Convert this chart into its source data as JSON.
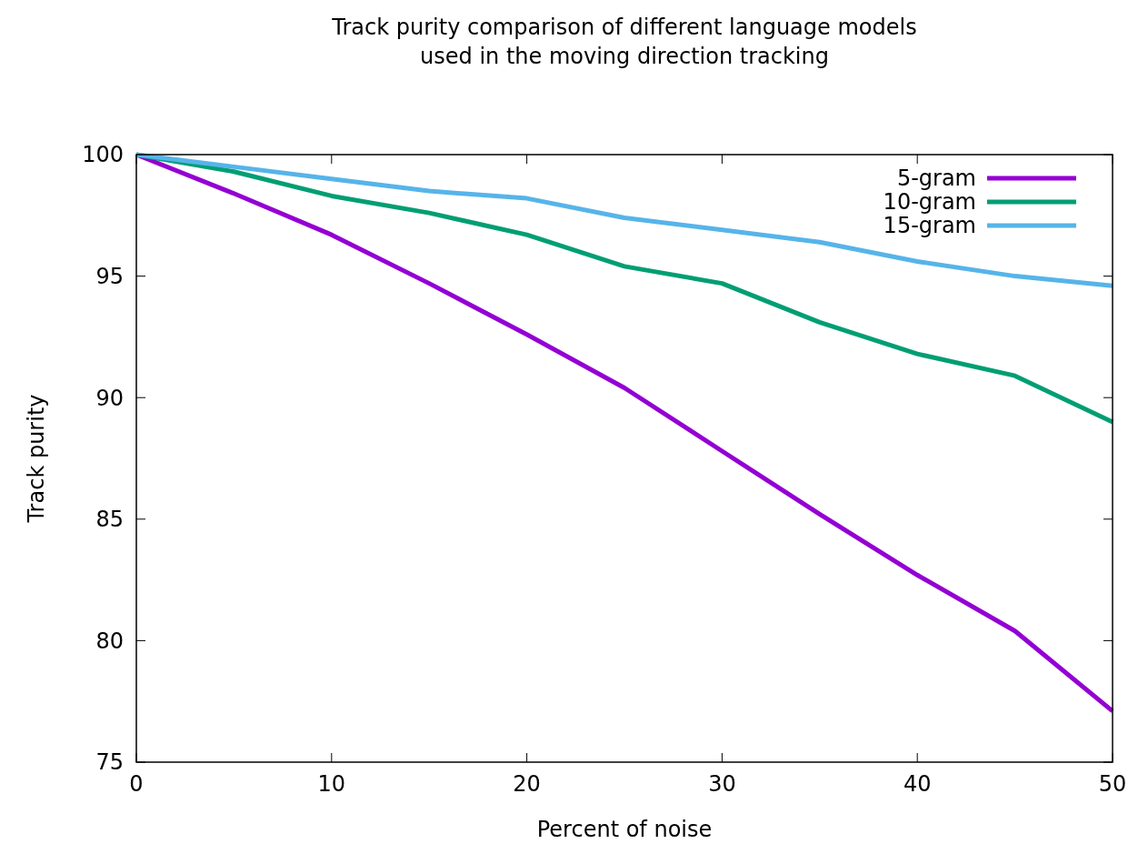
{
  "chart_data": {
    "type": "line",
    "title": "Track purity comparison of different language models\nused in the moving direction tracking",
    "xlabel": "Percent of noise",
    "ylabel": "Track purity",
    "x": [
      0,
      5,
      10,
      15,
      20,
      25,
      30,
      35,
      40,
      45,
      50
    ],
    "series": [
      {
        "name": "5-gram",
        "color": "#9400d3",
        "values": [
          100,
          98.4,
          96.7,
          94.7,
          92.6,
          90.4,
          87.8,
          85.2,
          82.7,
          80.4,
          77.1
        ]
      },
      {
        "name": "10-gram",
        "color": "#009e73",
        "values": [
          100,
          99.3,
          98.3,
          97.6,
          96.7,
          95.4,
          94.7,
          93.1,
          91.8,
          90.9,
          89.0
        ]
      },
      {
        "name": "15-gram",
        "color": "#56b4e9",
        "values": [
          100,
          99.5,
          99.0,
          98.5,
          98.2,
          97.4,
          96.9,
          96.4,
          95.6,
          95.0,
          94.6
        ]
      }
    ],
    "xlim": [
      0,
      50
    ],
    "xticks": [
      0,
      10,
      20,
      30,
      40,
      50
    ],
    "ylim": [
      75,
      100
    ],
    "yticks": [
      75,
      80,
      85,
      90,
      95,
      100
    ],
    "grid": false,
    "legend": "top right",
    "marker": "none",
    "line_style": "solid"
  }
}
